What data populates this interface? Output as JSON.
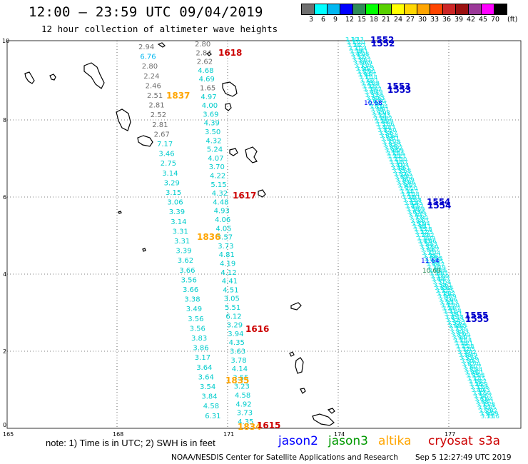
{
  "header": {
    "title": "12:00 — 23:59 UTC 09/04/2019",
    "subtitle": "12 hour collection of altimeter wave heights"
  },
  "legend": {
    "colors": [
      "#6f6f6f",
      "#00ffff",
      "#00b7f1",
      "#0000ff",
      "#2e8b57",
      "#00ff00",
      "#58d100",
      "#ffff00",
      "#ffd700",
      "#ffa500",
      "#ff4500",
      "#cd2626",
      "#9b1010",
      "#9b3898",
      "#ff00ff",
      "#000000"
    ],
    "labels": [
      "3",
      "6",
      "9",
      "12",
      "15",
      "18",
      "21",
      "24",
      "27",
      "30",
      "33",
      "36",
      "39",
      "42",
      "45",
      "70"
    ],
    "unit": "(ft)"
  },
  "map": {
    "x_ticks": [
      "165",
      "168",
      "171",
      "174",
      "177"
    ],
    "y_ticks": [
      "0",
      "2",
      "4",
      "6",
      "8",
      "10"
    ],
    "track_labels": [
      {
        "text": "1618",
        "color": "red"
      },
      {
        "text": "1837",
        "color": "orange"
      },
      {
        "text": "1617",
        "color": "red"
      },
      {
        "text": "1836",
        "color": "orange"
      },
      {
        "text": "1616",
        "color": "red"
      },
      {
        "text": "1835",
        "color": "orange"
      },
      {
        "text": "1834",
        "color": "orange"
      },
      {
        "text": "1615",
        "color": "red"
      },
      {
        "text": "1552",
        "color": "blue"
      },
      {
        "text": "1553",
        "color": "blue"
      },
      {
        "text": "1554",
        "color": "blue"
      },
      {
        "text": "1555",
        "color": "blue"
      }
    ],
    "track_a_values": [
      "2.94",
      "6.76",
      "2.80",
      "2.24",
      "2.46",
      "2.51",
      "2.81",
      "2.52",
      "2.81",
      "2.67",
      "7.17",
      "3.46",
      "2.75",
      "3.14",
      "3.29",
      "3.15",
      "3.06",
      "3.39",
      "3.14",
      "3.31",
      "3.31",
      "3.39",
      "3.62",
      "3.66",
      "3.56",
      "3.66",
      "3.38",
      "3.49",
      "3.56",
      "3.56",
      "3.83",
      "3.86",
      "3.17",
      "3.64",
      "3.64",
      "3.54",
      "3.84",
      "4.58",
      "6.31"
    ],
    "track_b_values": [
      "2.80",
      "2.84",
      "2.62",
      "4.68",
      "4.69",
      "1.65",
      "4.97",
      "4.00",
      "3.69",
      "4.39",
      "3.50",
      "4.32",
      "5.24",
      "4.07",
      "3.70",
      "4.22",
      "5.15",
      "4.32",
      "4.48",
      "4.93",
      "4.06",
      "4.05",
      "3.57",
      "3.73",
      "4.81",
      "4.19",
      "4.12",
      "4.41",
      "4.51",
      "3.05",
      "5.51",
      "6.12",
      "3.29",
      "3.94",
      "4.35",
      "3.63",
      "3.78",
      "4.14",
      "3.55",
      "3.23",
      "4.58",
      "4.92",
      "3.73",
      "4.35"
    ],
    "track_c_callouts": [
      "10.68",
      "11.64",
      "10.69"
    ]
  },
  "footer": {
    "note": "note:  1) Time is in UTC;  2) SWH is in feet",
    "satellites": [
      {
        "name": "jason2",
        "color": "#0000ff"
      },
      {
        "name": "jason3",
        "color": "#009900"
      },
      {
        "name": "altika",
        "color": "#ffa500"
      },
      {
        "name": "cryosat",
        "color": "#cc0000"
      },
      {
        "name": "s3a",
        "color": "#cc0000"
      }
    ],
    "credit": "NOAA/NESDIS Center for Satellite Applications and Research",
    "timestamp": "Sep  5 12:27:49 UTC 2019"
  }
}
